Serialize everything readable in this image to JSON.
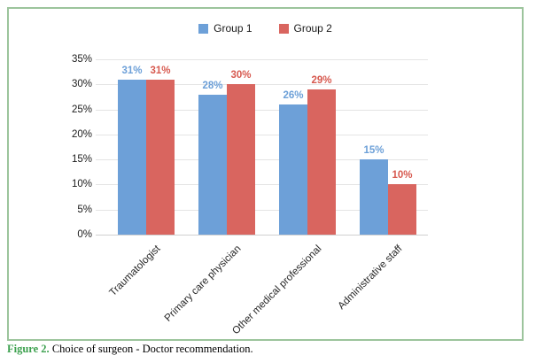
{
  "figure": {
    "caption": {
      "label": "Figure 2.",
      "text": " Choice of surgeon - Doctor recommendation."
    }
  },
  "chart_data": {
    "type": "bar",
    "title": "",
    "categories": [
      "Traumatologist",
      "Primary care physician",
      "Other medical professional",
      "Administrative staff"
    ],
    "series": [
      {
        "name": "Group 1",
        "color": "#6DA0D8",
        "label_color": "#6DA0D8",
        "values": [
          31,
          28,
          26,
          15
        ]
      },
      {
        "name": "Group 2",
        "color": "#D9655F",
        "label_color": "#D75A50",
        "values": [
          31,
          30,
          29,
          10
        ]
      }
    ],
    "value_suffix": "%",
    "y_ticks": [
      "0%",
      "5%",
      "10%",
      "15%",
      "20%",
      "25%",
      "30%",
      "35%"
    ],
    "ylim": [
      0,
      35
    ],
    "ytick_step": 5,
    "grid": true,
    "data_labels": true,
    "legend_position": "top",
    "xlabel": "",
    "ylabel": ""
  },
  "colors": {
    "frame_border": "#9CC49C",
    "caption_accent": "#3DA14F",
    "gridline": "#E4E4E4",
    "axis_text": "#262626"
  }
}
